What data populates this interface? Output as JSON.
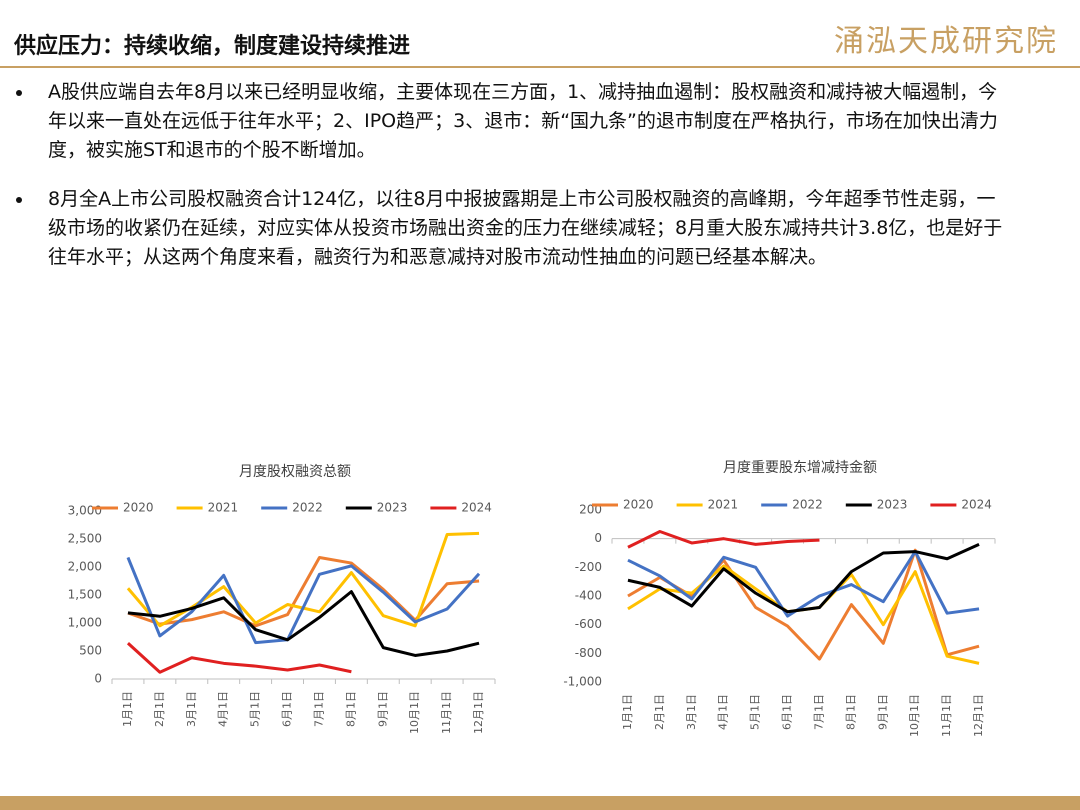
{
  "header": {
    "title": "供应压力：持续收缩，制度建设持续推进",
    "logo": "涌泓天成研究院"
  },
  "bullets": [
    "A股供应端自去年8月以来已经明显收缩，主要体现在三方面，1、减持抽血遏制：股权融资和减持被大幅遏制，今年以来一直处在远低于往年水平；2、IPO趋严；3、退市：新“国九条”的退市制度在严格执行，市场在加快出清力度，被实施ST和退市的个股不断增加。",
    "8月全A上市公司股权融资合计124亿，以往8月中报披露期是上市公司股权融资的高峰期，今年超季节性走弱，一级市场的收紧仍在延续，对应实体从投资市场融出资金的压力在继续减轻；8月重大股东减持共计3.8亿，也是好于往年水平；从这两个角度来看，融资行为和恶意减持对股市流动性抽血的问题已经基本解决。"
  ],
  "chart_data": [
    {
      "type": "line",
      "title": "月度股权融资总额",
      "legend": "top",
      "grid": false,
      "categories": [
        "1月1日",
        "2月1日",
        "3月1日",
        "4月1日",
        "5月1日",
        "6月1日",
        "7月1日",
        "8月1日",
        "9月1日",
        "10月1日",
        "11月1日",
        "12月1日"
      ],
      "ylim": [
        0,
        3000
      ],
      "yticks": [
        0,
        500,
        {
          "value": 1000,
          "label": "1,000"
        },
        {
          "value": 1500,
          "label": "1,500"
        },
        {
          "value": 2000,
          "label": "2,000"
        },
        {
          "value": 2500,
          "label": "2,500"
        },
        {
          "value": 3000,
          "label": "3,000"
        }
      ],
      "series": [
        {
          "name": "2020",
          "color": "#ed7d31",
          "values": [
            1180,
            980,
            1060,
            1200,
            950,
            1150,
            2170,
            2070,
            1600,
            1050,
            1700,
            1750
          ]
        },
        {
          "name": "2021",
          "color": "#ffc000",
          "values": [
            1620,
            950,
            1280,
            1650,
            1000,
            1330,
            1200,
            1900,
            1130,
            950,
            2580,
            2600
          ]
        },
        {
          "name": "2022",
          "color": "#4472c4",
          "values": [
            2170,
            770,
            1200,
            1850,
            650,
            700,
            1870,
            2020,
            1550,
            1020,
            1250,
            1880
          ]
        },
        {
          "name": "2023",
          "color": "#000000",
          "values": [
            1180,
            1120,
            1260,
            1450,
            880,
            700,
            1100,
            1560,
            560,
            420,
            500,
            640
          ]
        },
        {
          "name": "2024",
          "color": "#e02020",
          "values": [
            640,
            120,
            380,
            280,
            230,
            160,
            250,
            130,
            null,
            null,
            null,
            null
          ]
        }
      ]
    },
    {
      "type": "line",
      "title": "月度重要股东增减持金额",
      "legend": "top",
      "grid": false,
      "categories": [
        "1月1日",
        "2月1日",
        "3月1日",
        "4月1日",
        "5月1日",
        "6月1日",
        "7月1日",
        "8月1日",
        "9月1日",
        "10月1日",
        "11月1日",
        "12月1日"
      ],
      "ylim": [
        -1000,
        200
      ],
      "yticks": [
        {
          "value": -1000,
          "label": "-1,000"
        },
        -800,
        -600,
        -400,
        -200,
        0,
        200
      ],
      "series": [
        {
          "name": "2020",
          "color": "#ed7d31",
          "values": [
            -400,
            -270,
            -400,
            -150,
            -480,
            -610,
            -840,
            -460,
            -730,
            -80,
            -810,
            -750
          ]
        },
        {
          "name": "2021",
          "color": "#ffc000",
          "values": [
            -490,
            -350,
            -380,
            -190,
            -350,
            -510,
            -480,
            -250,
            -600,
            -230,
            -820,
            -870
          ]
        },
        {
          "name": "2022",
          "color": "#4472c4",
          "values": [
            -150,
            -260,
            -420,
            -130,
            -200,
            -540,
            -400,
            -320,
            -440,
            -90,
            -520,
            -490
          ]
        },
        {
          "name": "2023",
          "color": "#000000",
          "values": [
            -290,
            -340,
            -470,
            -210,
            -380,
            -510,
            -480,
            -230,
            -100,
            -90,
            -140,
            -40
          ]
        },
        {
          "name": "2024",
          "color": "#e02020",
          "values": [
            -60,
            50,
            -30,
            0,
            -40,
            -20,
            -10,
            null,
            null,
            null,
            null,
            null
          ]
        }
      ]
    }
  ]
}
